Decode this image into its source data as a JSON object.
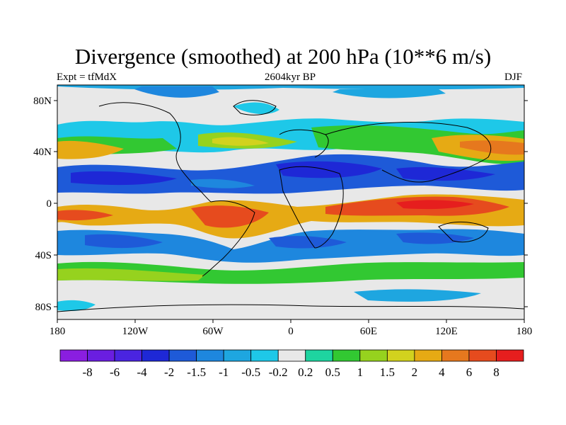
{
  "title": "Divergence (smoothed) at 200 hPa (10**6 m/s)",
  "subtitle_left": "Expt = tfMdX",
  "subtitle_center": "2604kyr BP",
  "subtitle_right": "DJF",
  "lat_labels": [
    "80N",
    "40N",
    "0",
    "40S",
    "80S"
  ],
  "lon_labels": [
    "180",
    "120W",
    "60W",
    "0",
    "60E",
    "120E",
    "180"
  ],
  "colorbar": {
    "labels": [
      "-8",
      "-6",
      "-4",
      "-2",
      "-1.5",
      "-1",
      "-0.5",
      "-0.2",
      "0.2",
      "0.5",
      "1",
      "1.5",
      "2",
      "4",
      "6",
      "8"
    ],
    "colors": [
      "#8a1ee0",
      "#6a1ee0",
      "#4a24e0",
      "#1e28d6",
      "#1e5ad8",
      "#1e87de",
      "#1ea6e0",
      "#1ec8e8",
      "#e8e8e8",
      "#1ed4a0",
      "#32c832",
      "#96d21e",
      "#d2d21e",
      "#e6aa14",
      "#e6781e",
      "#e64b1e",
      "#e61e1e"
    ]
  },
  "colors": {
    "neutral": "#e8e8e8",
    "coast": "#000000"
  }
}
